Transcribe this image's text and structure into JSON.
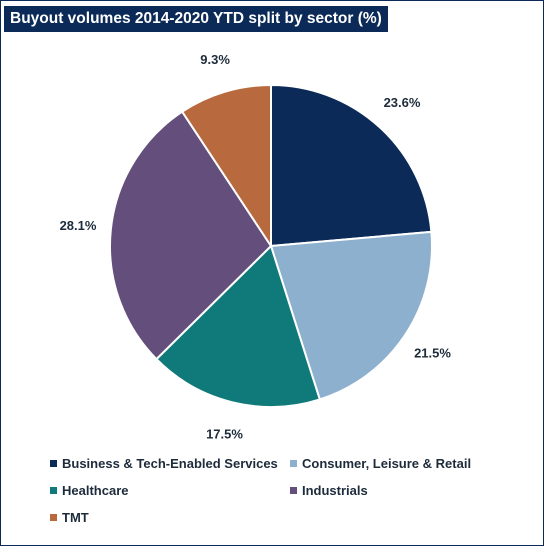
{
  "chart_data": {
    "type": "pie",
    "title": "Buyout volumes 2014-2020 YTD split by sector (%)",
    "slices": [
      {
        "name": "Business & Tech-Enabled Services",
        "value": 23.6,
        "label": "23.6%",
        "color": "#0b2a57"
      },
      {
        "name": "Consumer, Leisure & Retail",
        "value": 21.5,
        "label": "21.5%",
        "color": "#8eb0cf"
      },
      {
        "name": "Healthcare",
        "value": 17.5,
        "label": "17.5%",
        "color": "#0f7a79"
      },
      {
        "name": "Industrials",
        "value": 28.1,
        "label": "28.1%",
        "color": "#634e7c"
      },
      {
        "name": "TMT",
        "value": 9.3,
        "label": "9.3%",
        "color": "#b8693e"
      }
    ],
    "legend_position": "bottom"
  }
}
